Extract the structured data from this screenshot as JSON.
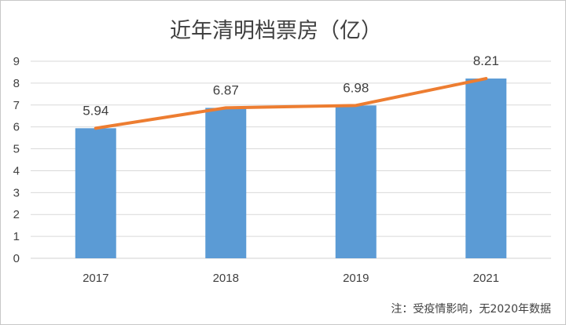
{
  "chart_data": {
    "type": "bar",
    "title": "近年清明档票房（亿）",
    "categories": [
      "2017",
      "2018",
      "2019",
      "2021"
    ],
    "values": [
      5.94,
      6.87,
      6.98,
      8.21
    ],
    "value_labels": [
      "5.94",
      "6.87",
      "6.98",
      "8.21"
    ],
    "overlay_line": {
      "type": "line",
      "values": [
        5.94,
        6.87,
        6.98,
        8.21
      ],
      "color": "#ED7D31"
    },
    "bar_color": "#5B9BD5",
    "ylim": [
      0,
      9
    ],
    "yticks": [
      0,
      1,
      2,
      3,
      4,
      5,
      6,
      7,
      8,
      9
    ],
    "grid": true,
    "xlabel": "",
    "ylabel": "",
    "note": "注：受疫情影响，无2020年数据"
  }
}
